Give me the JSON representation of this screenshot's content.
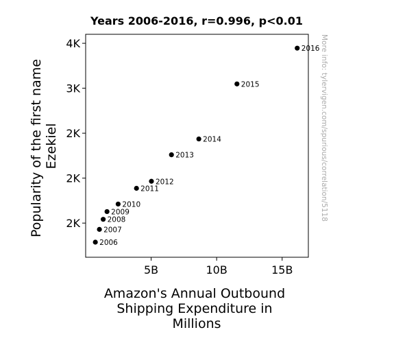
{
  "chart_data": {
    "type": "scatter",
    "title": "Years 2006-2016, r=0.996, p<0.01",
    "xlabel": [
      "Amazon's Annual Outbound",
      "Shipping Expenditure in",
      "Millions"
    ],
    "ylabel": [
      "Popularity of the first name",
      "Ezekiel"
    ],
    "xlim": [
      0,
      17000
    ],
    "ylim": [
      1120,
      3600
    ],
    "x_ticks": [
      {
        "value": 5000,
        "label": "5B"
      },
      {
        "value": 10000,
        "label": "10B"
      },
      {
        "value": 15000,
        "label": "15B"
      }
    ],
    "y_ticks": [
      {
        "value": 1500,
        "label": "2K"
      },
      {
        "value": 2000,
        "label": "2K"
      },
      {
        "value": 2500,
        "label": "2K"
      },
      {
        "value": 3000,
        "label": "3K"
      },
      {
        "value": 3500,
        "label": "4K"
      }
    ],
    "points": [
      {
        "label": "2006",
        "x": 740,
        "y": 1288
      },
      {
        "label": "2007",
        "x": 1050,
        "y": 1430
      },
      {
        "label": "2008",
        "x": 1340,
        "y": 1542
      },
      {
        "label": "2009",
        "x": 1630,
        "y": 1628
      },
      {
        "label": "2010",
        "x": 2480,
        "y": 1712
      },
      {
        "label": "2011",
        "x": 3880,
        "y": 1887
      },
      {
        "label": "2012",
        "x": 5020,
        "y": 1965
      },
      {
        "label": "2013",
        "x": 6550,
        "y": 2260
      },
      {
        "label": "2014",
        "x": 8640,
        "y": 2436
      },
      {
        "label": "2015",
        "x": 11550,
        "y": 3048
      },
      {
        "label": "2016",
        "x": 16150,
        "y": 3446
      }
    ],
    "grid": false,
    "legend": "none"
  },
  "watermark": "More info: tylervigen.com/spurious/correlation/5118"
}
